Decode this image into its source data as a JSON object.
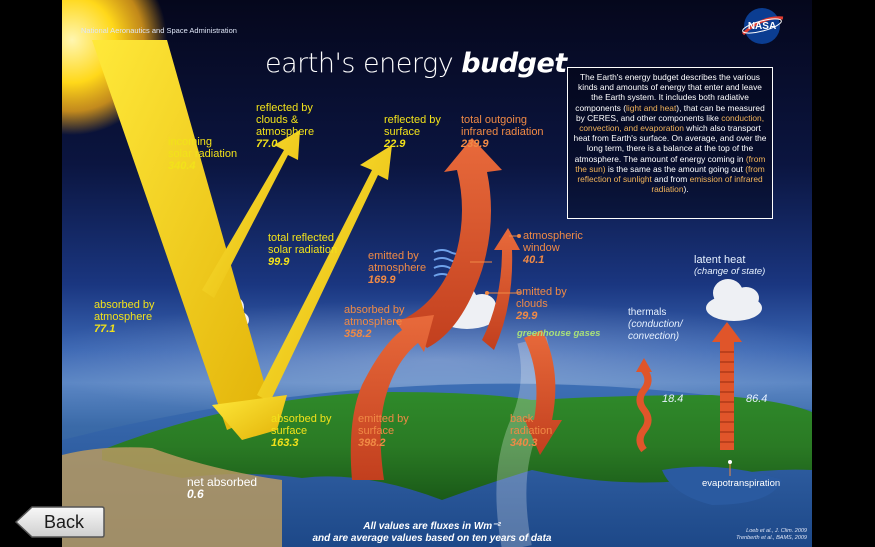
{
  "header": {
    "agency": "National Aeronautics and Space Administration",
    "logo_text": "NASA",
    "title_plain": "earth's energy ",
    "title_bold": "budget"
  },
  "description": {
    "p1": "The Earth's energy budget describes the various kinds and amounts of energy that enter and leave the Earth system. It includes both radiative components (",
    "hl1": "light and heat",
    "p2": "), that can be measured by CERES, and other components like ",
    "hl2": "conduction, convection, and evaporation",
    "p3": " which also transport heat from Earth's surface. On average, and over the long term, there is a balance at the top of the atmosphere. The amount of energy coming in ",
    "hl3": "(from the sun)",
    "p4": " is the same as the amount going out ",
    "hl4": "(from reflection of sunlight",
    "p5": " and from ",
    "hl5": "emission of infrared radiation",
    "p6": ")."
  },
  "flows": {
    "incoming": {
      "label1": "incoming",
      "label2": "solar radiation",
      "value": "340.4"
    },
    "reflected_clouds": {
      "label1": "reflected by",
      "label2": "clouds &",
      "label3": "atmosphere",
      "value": "77.0"
    },
    "reflected_surface": {
      "label1": "reflected by",
      "label2": "surface",
      "value": "22.9"
    },
    "outgoing_ir": {
      "label1": "total outgoing",
      "label2": "infrared radiation",
      "value": "239.9"
    },
    "total_reflected": {
      "label1": "total reflected",
      "label2": "solar radiation",
      "value": "99.9"
    },
    "absorbed_atm": {
      "label1": "absorbed by",
      "label2": "atmosphere",
      "value": "77.1"
    },
    "emitted_atm": {
      "label1": "emitted by",
      "label2": "atmosphere",
      "value": "169.9"
    },
    "atm_window": {
      "label1": "atmospheric",
      "label2": "window",
      "value": "40.1"
    },
    "emitted_clouds": {
      "label1": "emitted by",
      "label2": "clouds",
      "value": "29.9"
    },
    "absorbed_atm_ir": {
      "label1": "absorbed by",
      "label2": "atmosphere",
      "value": "358.2"
    },
    "greenhouse": {
      "label": "greenhouse gases"
    },
    "latent_heat": {
      "label1": "latent heat",
      "label2": "(change of state)"
    },
    "thermals": {
      "label1": "thermals",
      "label2": "(conduction/",
      "label3": "convection)",
      "value": "18.4"
    },
    "latent_value": "86.4",
    "absorbed_surface": {
      "label1": "absorbed by",
      "label2": "surface",
      "value": "163.3"
    },
    "emitted_surface": {
      "label1": "emitted by",
      "label2": "surface",
      "value": "398.2"
    },
    "back_radiation": {
      "label1": "back",
      "label2": "radiation",
      "value": "340.3"
    },
    "evapotranspiration": {
      "label": "evapotranspiration"
    },
    "net_absorbed": {
      "label": "net absorbed",
      "value": "0.6"
    }
  },
  "footer": {
    "line1": "All values are fluxes in Wm⁻²",
    "line2": "and are average values based on ten years of data",
    "ref1": "Loeb et al., J. Clim. 2009",
    "ref2": "Trenberth et al., BAMS, 2009"
  },
  "nav": {
    "back_label": "Back"
  },
  "colors": {
    "solar": "#f5d60c",
    "infrared": "#e0552a",
    "background": "#000000"
  }
}
